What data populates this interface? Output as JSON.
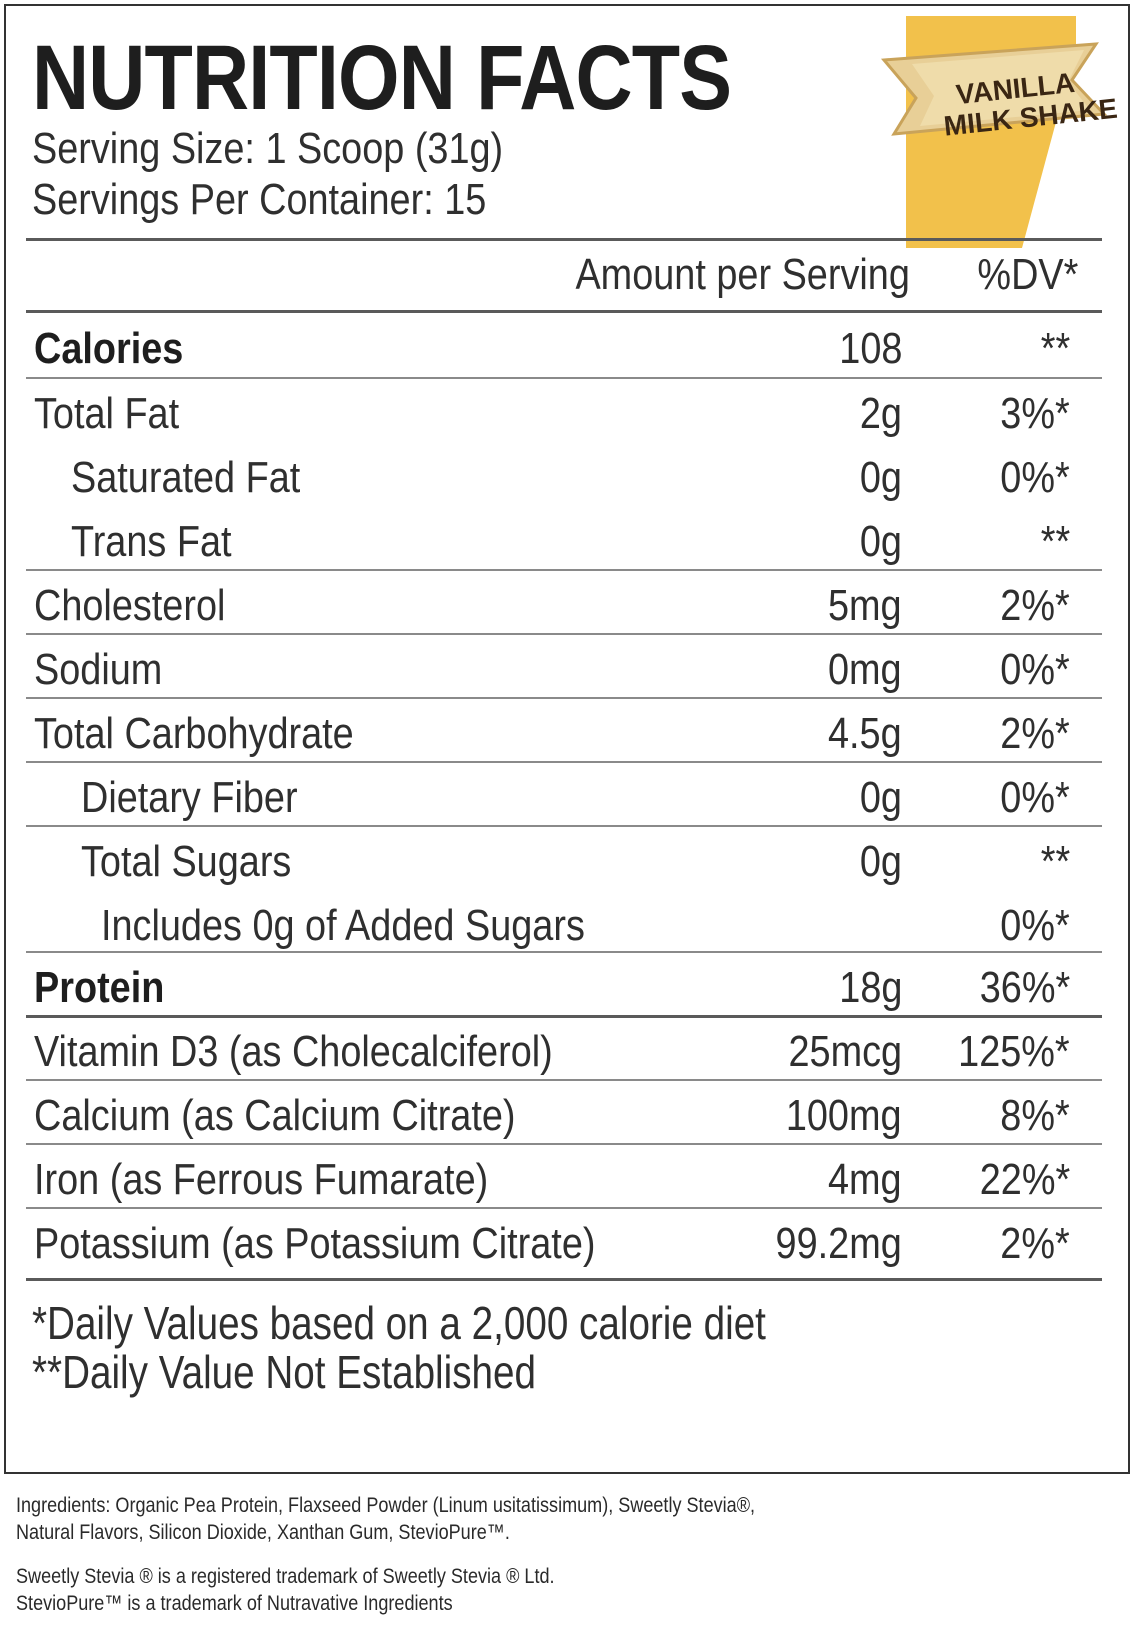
{
  "title": "NUTRITION FACTS",
  "serving_size": "Serving Size: 1 Scoop (31g)",
  "servings_per_container": "Servings Per Container: 15",
  "badge": {
    "line1": "VANILLA",
    "line2": "MILK SHAKE",
    "color": "#f2c14b"
  },
  "header": {
    "amount": "Amount per Serving",
    "dv": "%DV*"
  },
  "rows": [
    {
      "name": "Calories",
      "amount": "108",
      "dv": "**"
    },
    {
      "name": "Total Fat",
      "amount": "2g",
      "dv": "3%*"
    },
    {
      "name": "Saturated Fat",
      "amount": "0g",
      "dv": "0%*"
    },
    {
      "name": "Trans Fat",
      "amount": "0g",
      "dv": "**"
    },
    {
      "name": "Cholesterol",
      "amount": "5mg",
      "dv": "2%*"
    },
    {
      "name": "Sodium",
      "amount": "0mg",
      "dv": "0%*"
    },
    {
      "name": "Total Carbohydrate",
      "amount": "4.5g",
      "dv": "2%*"
    },
    {
      "name": "Dietary Fiber",
      "amount": "0g",
      "dv": "0%*"
    },
    {
      "name": "Total Sugars",
      "amount": "0g",
      "dv": "**"
    },
    {
      "name": "Includes 0g of Added Sugars",
      "amount": "",
      "dv": "0%*"
    },
    {
      "name": "Protein",
      "amount": "18g",
      "dv": "36%*"
    },
    {
      "name": "Vitamin D3 (as Cholecalciferol)",
      "amount": "25mcg",
      "dv": "125%*"
    },
    {
      "name": "Calcium (as Calcium Citrate)",
      "amount": "100mg",
      "dv": "8%*"
    },
    {
      "name": "Iron (as Ferrous Fumarate)",
      "amount": "4mg",
      "dv": "22%*"
    },
    {
      "name": "Potassium (as Potassium Citrate)",
      "amount": "99.2mg",
      "dv": "2%*"
    }
  ],
  "footnotes": [
    "*Daily Values based on a 2,000 calorie diet",
    "**Daily Value Not Established"
  ],
  "ingredients": [
    "Ingredients: Organic Pea Protein, Flaxseed Powder (Linum usitatissimum), Sweetly Stevia®,",
    "Natural Flavors, Silicon Dioxide, Xanthan Gum, StevioPure™."
  ],
  "trademarks": [
    "Sweetly Stevia ® is a registered trademark of Sweetly Stevia ® Ltd.",
    "StevioPure™ is a trademark of Nutravative Ingredients"
  ]
}
